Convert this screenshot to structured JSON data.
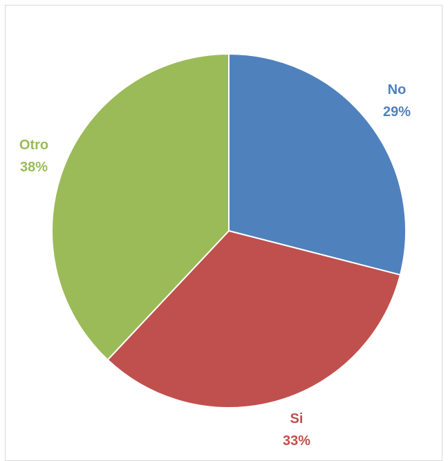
{
  "chart_data": {
    "type": "pie",
    "title": "",
    "slices": [
      {
        "label": "No",
        "value": 29,
        "value_label": "29%",
        "color": "#4F81BD"
      },
      {
        "label": "Si",
        "value": 33,
        "value_label": "33%",
        "color": "#C0504D"
      },
      {
        "label": "Otro",
        "value": 38,
        "value_label": "38%",
        "color": "#9BBB59"
      }
    ],
    "start_angle": "12 o'clock",
    "direction": "clockwise",
    "legend": "none",
    "data_labels": "outside, category name and percentage"
  }
}
